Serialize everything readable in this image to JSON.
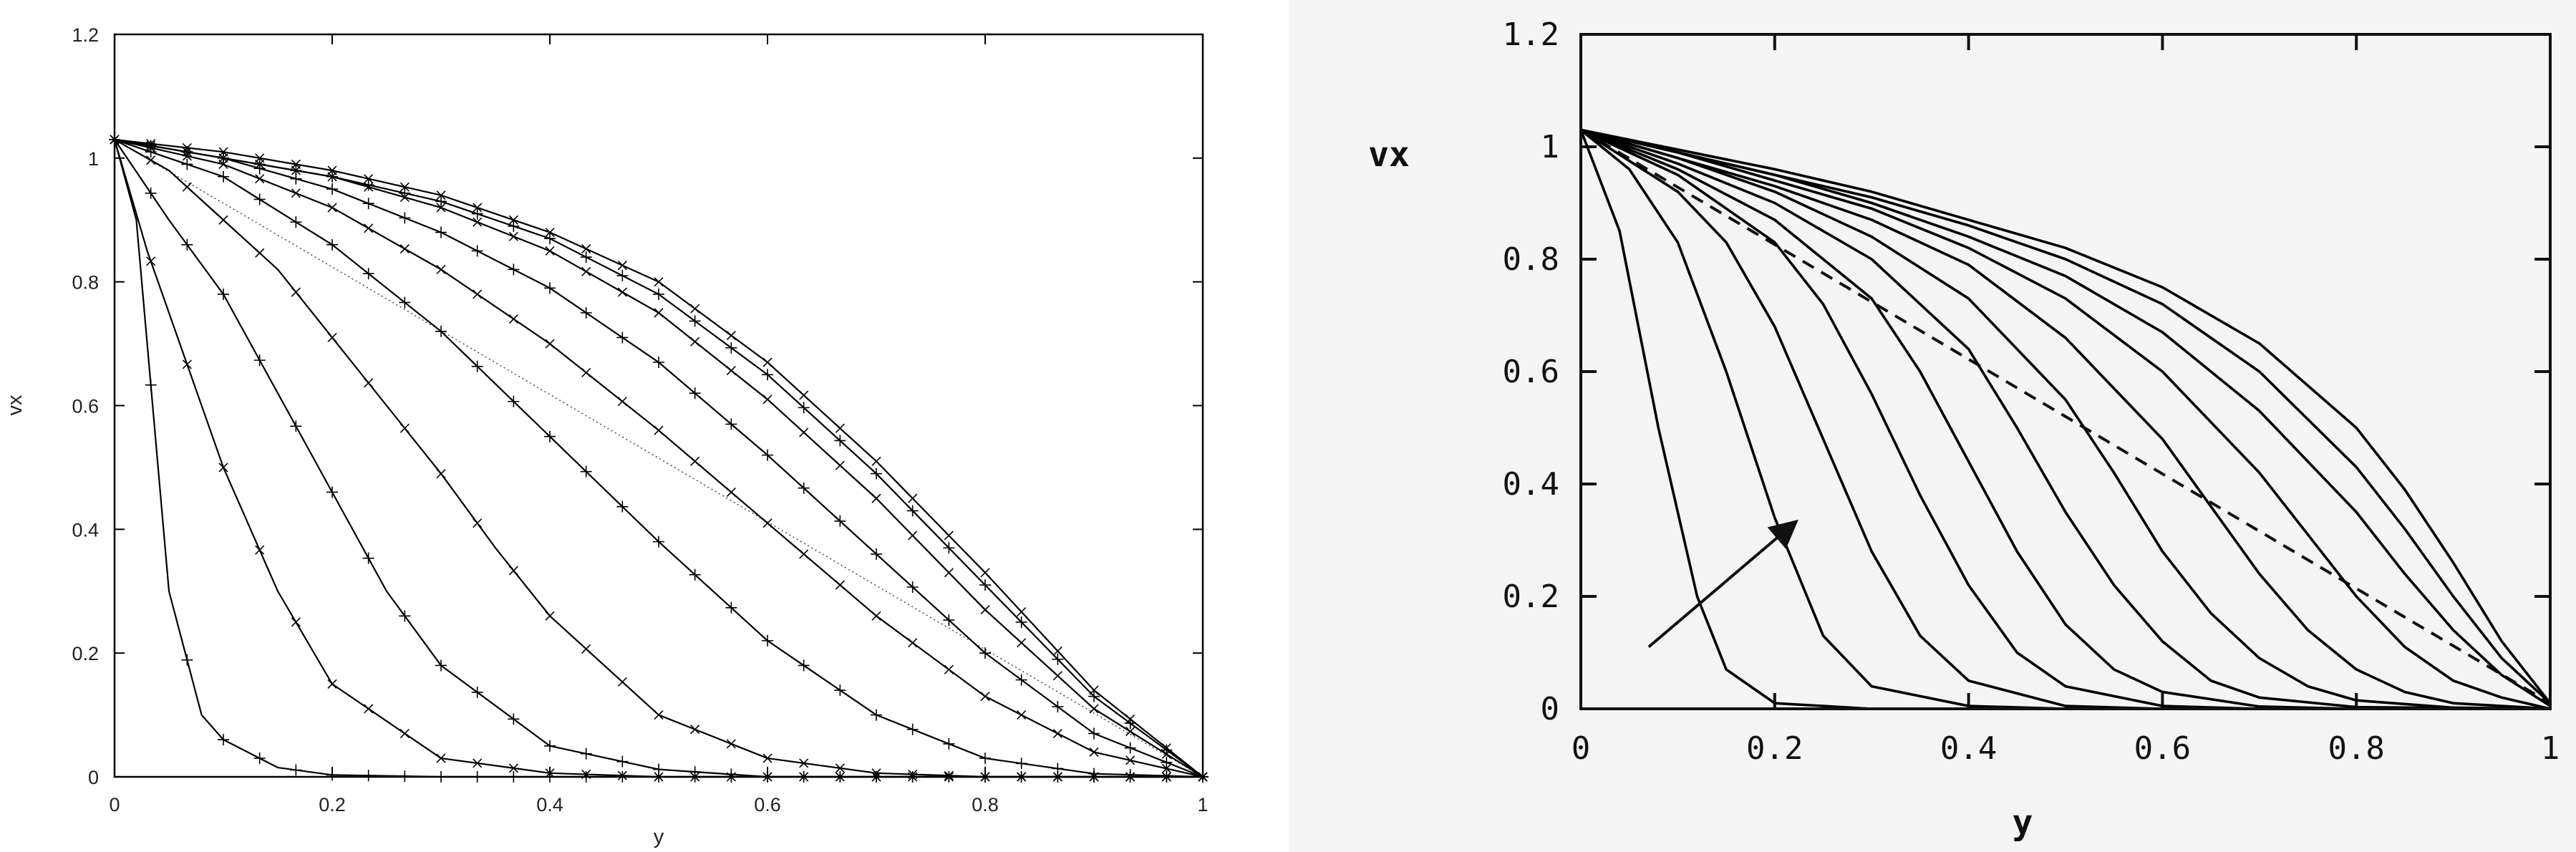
{
  "chart_data": [
    {
      "type": "line",
      "xlabel": "y",
      "ylabel": "vx",
      "xlim": [
        0,
        1
      ],
      "ylim": [
        0,
        1.2
      ],
      "xticks": [
        "0",
        "0.2",
        "0.4",
        "0.6",
        "0.8",
        "1"
      ],
      "yticks": [
        "0",
        "0.2",
        "0.4",
        "0.6",
        "0.8",
        "1",
        "1.2"
      ],
      "markers": [
        "+",
        "×",
        "+",
        "×",
        "+",
        "×",
        "+",
        "×",
        "+",
        "×"
      ],
      "series": [
        {
          "values": [
            [
              0,
              1.03
            ],
            [
              0.02,
              0.9
            ],
            [
              0.05,
              0.3
            ],
            [
              0.08,
              0.1
            ],
            [
              0.1,
              0.06
            ],
            [
              0.15,
              0.015
            ],
            [
              0.2,
              0.003
            ],
            [
              0.3,
              0
            ],
            [
              1,
              0
            ]
          ]
        },
        {
          "values": [
            [
              0,
              1.03
            ],
            [
              0.03,
              0.85
            ],
            [
              0.06,
              0.7
            ],
            [
              0.1,
              0.5
            ],
            [
              0.15,
              0.3
            ],
            [
              0.2,
              0.15
            ],
            [
              0.3,
              0.03
            ],
            [
              0.4,
              0.006
            ],
            [
              0.5,
              0
            ],
            [
              1,
              0
            ]
          ]
        },
        {
          "values": [
            [
              0,
              1.03
            ],
            [
              0.05,
              0.9
            ],
            [
              0.1,
              0.78
            ],
            [
              0.15,
              0.62
            ],
            [
              0.2,
              0.46
            ],
            [
              0.25,
              0.3
            ],
            [
              0.3,
              0.18
            ],
            [
              0.4,
              0.05
            ],
            [
              0.5,
              0.012
            ],
            [
              0.6,
              0
            ],
            [
              1,
              0
            ]
          ]
        },
        {
          "values": [
            [
              0,
              1.03
            ],
            [
              0.05,
              0.98
            ],
            [
              0.1,
              0.9
            ],
            [
              0.15,
              0.82
            ],
            [
              0.2,
              0.71
            ],
            [
              0.25,
              0.6
            ],
            [
              0.3,
              0.49
            ],
            [
              0.35,
              0.37
            ],
            [
              0.4,
              0.26
            ],
            [
              0.5,
              0.1
            ],
            [
              0.6,
              0.03
            ],
            [
              0.7,
              0.006
            ],
            [
              0.8,
              0
            ],
            [
              1,
              0
            ]
          ]
        },
        {
          "values": [
            [
              0,
              1.03
            ],
            [
              0.1,
              0.97
            ],
            [
              0.2,
              0.86
            ],
            [
              0.3,
              0.72
            ],
            [
              0.4,
              0.55
            ],
            [
              0.5,
              0.38
            ],
            [
              0.6,
              0.22
            ],
            [
              0.7,
              0.1
            ],
            [
              0.8,
              0.03
            ],
            [
              0.9,
              0.005
            ],
            [
              1,
              0
            ]
          ]
        },
        {
          "values": [
            [
              0,
              1.03
            ],
            [
              0.1,
              0.99
            ],
            [
              0.2,
              0.92
            ],
            [
              0.3,
              0.82
            ],
            [
              0.4,
              0.7
            ],
            [
              0.5,
              0.56
            ],
            [
              0.6,
              0.41
            ],
            [
              0.7,
              0.26
            ],
            [
              0.8,
              0.13
            ],
            [
              0.9,
              0.04
            ],
            [
              1,
              0
            ]
          ]
        },
        {
          "values": [
            [
              0,
              1.03
            ],
            [
              0.1,
              1.0
            ],
            [
              0.2,
              0.95
            ],
            [
              0.3,
              0.88
            ],
            [
              0.4,
              0.79
            ],
            [
              0.5,
              0.67
            ],
            [
              0.6,
              0.52
            ],
            [
              0.7,
              0.36
            ],
            [
              0.8,
              0.2
            ],
            [
              0.9,
              0.07
            ],
            [
              1,
              0
            ]
          ]
        },
        {
          "values": [
            [
              0,
              1.03
            ],
            [
              0.1,
              1.0
            ],
            [
              0.2,
              0.97
            ],
            [
              0.3,
              0.92
            ],
            [
              0.4,
              0.85
            ],
            [
              0.5,
              0.75
            ],
            [
              0.6,
              0.61
            ],
            [
              0.7,
              0.45
            ],
            [
              0.8,
              0.27
            ],
            [
              0.9,
              0.11
            ],
            [
              1,
              0
            ]
          ]
        },
        {
          "values": [
            [
              0,
              1.03
            ],
            [
              0.1,
              1.0
            ],
            [
              0.2,
              0.97
            ],
            [
              0.3,
              0.93
            ],
            [
              0.4,
              0.87
            ],
            [
              0.5,
              0.78
            ],
            [
              0.6,
              0.65
            ],
            [
              0.7,
              0.49
            ],
            [
              0.8,
              0.31
            ],
            [
              0.9,
              0.13
            ],
            [
              1,
              0
            ]
          ]
        },
        {
          "values": [
            [
              0,
              1.03
            ],
            [
              0.1,
              1.01
            ],
            [
              0.2,
              0.98
            ],
            [
              0.3,
              0.94
            ],
            [
              0.4,
              0.88
            ],
            [
              0.5,
              0.8
            ],
            [
              0.6,
              0.67
            ],
            [
              0.7,
              0.51
            ],
            [
              0.8,
              0.33
            ],
            [
              0.9,
              0.14
            ],
            [
              1,
              0
            ]
          ]
        }
      ],
      "reference": {
        "style": "dotted",
        "values": [
          [
            0,
            1.03
          ],
          [
            1,
            0
          ]
        ]
      }
    },
    {
      "type": "line",
      "xlabel": "y",
      "ylabel": "vx",
      "xlim": [
        0,
        1
      ],
      "ylim": [
        0,
        1.2
      ],
      "xticks": [
        "0",
        "0.2",
        "0.4",
        "0.6",
        "0.8",
        "1"
      ],
      "yticks": [
        "0",
        "0.2",
        "0.4",
        "0.6",
        "0.8",
        "1",
        "1.2"
      ],
      "series": [
        {
          "values": [
            [
              0,
              1.03
            ],
            [
              0.04,
              0.85
            ],
            [
              0.08,
              0.5
            ],
            [
              0.12,
              0.2
            ],
            [
              0.15,
              0.07
            ],
            [
              0.2,
              0.01
            ],
            [
              0.3,
              0
            ],
            [
              1,
              0
            ]
          ]
        },
        {
          "values": [
            [
              0,
              1.03
            ],
            [
              0.05,
              0.96
            ],
            [
              0.1,
              0.83
            ],
            [
              0.15,
              0.6
            ],
            [
              0.2,
              0.34
            ],
            [
              0.25,
              0.13
            ],
            [
              0.3,
              0.04
            ],
            [
              0.4,
              0.005
            ],
            [
              0.5,
              0
            ],
            [
              1,
              0
            ]
          ]
        },
        {
          "values": [
            [
              0,
              1.03
            ],
            [
              0.1,
              0.92
            ],
            [
              0.15,
              0.83
            ],
            [
              0.2,
              0.68
            ],
            [
              0.25,
              0.48
            ],
            [
              0.3,
              0.28
            ],
            [
              0.35,
              0.13
            ],
            [
              0.4,
              0.05
            ],
            [
              0.5,
              0.005
            ],
            [
              0.6,
              0
            ],
            [
              1,
              0
            ]
          ]
        },
        {
          "values": [
            [
              0,
              1.03
            ],
            [
              0.1,
              0.95
            ],
            [
              0.2,
              0.83
            ],
            [
              0.25,
              0.72
            ],
            [
              0.3,
              0.56
            ],
            [
              0.35,
              0.38
            ],
            [
              0.4,
              0.22
            ],
            [
              0.45,
              0.1
            ],
            [
              0.5,
              0.04
            ],
            [
              0.6,
              0.005
            ],
            [
              0.7,
              0
            ],
            [
              1,
              0
            ]
          ]
        },
        {
          "values": [
            [
              0,
              1.03
            ],
            [
              0.1,
              0.96
            ],
            [
              0.2,
              0.87
            ],
            [
              0.3,
              0.73
            ],
            [
              0.35,
              0.6
            ],
            [
              0.4,
              0.44
            ],
            [
              0.45,
              0.28
            ],
            [
              0.5,
              0.15
            ],
            [
              0.55,
              0.07
            ],
            [
              0.6,
              0.03
            ],
            [
              0.7,
              0.004
            ],
            [
              0.8,
              0
            ],
            [
              1,
              0
            ]
          ]
        },
        {
          "values": [
            [
              0,
              1.03
            ],
            [
              0.1,
              0.97
            ],
            [
              0.2,
              0.9
            ],
            [
              0.3,
              0.8
            ],
            [
              0.4,
              0.64
            ],
            [
              0.45,
              0.5
            ],
            [
              0.5,
              0.35
            ],
            [
              0.55,
              0.22
            ],
            [
              0.6,
              0.12
            ],
            [
              0.65,
              0.05
            ],
            [
              0.7,
              0.02
            ],
            [
              0.8,
              0.003
            ],
            [
              1,
              0
            ]
          ]
        },
        {
          "values": [
            [
              0,
              1.03
            ],
            [
              0.1,
              0.98
            ],
            [
              0.2,
              0.92
            ],
            [
              0.3,
              0.84
            ],
            [
              0.4,
              0.73
            ],
            [
              0.5,
              0.55
            ],
            [
              0.55,
              0.42
            ],
            [
              0.6,
              0.28
            ],
            [
              0.65,
              0.17
            ],
            [
              0.7,
              0.09
            ],
            [
              0.75,
              0.04
            ],
            [
              0.8,
              0.015
            ],
            [
              0.9,
              0.002
            ],
            [
              1,
              0
            ]
          ]
        },
        {
          "values": [
            [
              0,
              1.03
            ],
            [
              0.1,
              0.98
            ],
            [
              0.2,
              0.93
            ],
            [
              0.3,
              0.87
            ],
            [
              0.4,
              0.79
            ],
            [
              0.5,
              0.66
            ],
            [
              0.6,
              0.48
            ],
            [
              0.65,
              0.36
            ],
            [
              0.7,
              0.24
            ],
            [
              0.75,
              0.14
            ],
            [
              0.8,
              0.07
            ],
            [
              0.85,
              0.03
            ],
            [
              0.9,
              0.01
            ],
            [
              1,
              0
            ]
          ]
        },
        {
          "values": [
            [
              0,
              1.03
            ],
            [
              0.1,
              0.99
            ],
            [
              0.2,
              0.94
            ],
            [
              0.3,
              0.89
            ],
            [
              0.4,
              0.82
            ],
            [
              0.5,
              0.73
            ],
            [
              0.6,
              0.6
            ],
            [
              0.7,
              0.42
            ],
            [
              0.75,
              0.31
            ],
            [
              0.8,
              0.2
            ],
            [
              0.85,
              0.11
            ],
            [
              0.9,
              0.05
            ],
            [
              0.95,
              0.02
            ],
            [
              1,
              0
            ]
          ]
        },
        {
          "values": [
            [
              0,
              1.03
            ],
            [
              0.1,
              0.99
            ],
            [
              0.2,
              0.95
            ],
            [
              0.3,
              0.9
            ],
            [
              0.4,
              0.84
            ],
            [
              0.5,
              0.77
            ],
            [
              0.6,
              0.67
            ],
            [
              0.7,
              0.53
            ],
            [
              0.8,
              0.35
            ],
            [
              0.85,
              0.24
            ],
            [
              0.9,
              0.14
            ],
            [
              0.95,
              0.06
            ],
            [
              1,
              0.005
            ]
          ]
        },
        {
          "values": [
            [
              0,
              1.03
            ],
            [
              0.1,
              0.99
            ],
            [
              0.2,
              0.95
            ],
            [
              0.3,
              0.91
            ],
            [
              0.4,
              0.86
            ],
            [
              0.5,
              0.8
            ],
            [
              0.6,
              0.72
            ],
            [
              0.7,
              0.6
            ],
            [
              0.8,
              0.43
            ],
            [
              0.85,
              0.32
            ],
            [
              0.9,
              0.2
            ],
            [
              0.95,
              0.09
            ],
            [
              1,
              0.01
            ]
          ]
        },
        {
          "values": [
            [
              0,
              1.03
            ],
            [
              0.1,
              0.995
            ],
            [
              0.2,
              0.96
            ],
            [
              0.3,
              0.92
            ],
            [
              0.4,
              0.87
            ],
            [
              0.5,
              0.82
            ],
            [
              0.6,
              0.75
            ],
            [
              0.7,
              0.65
            ],
            [
              0.8,
              0.5
            ],
            [
              0.85,
              0.39
            ],
            [
              0.9,
              0.26
            ],
            [
              0.95,
              0.12
            ],
            [
              1,
              0.01
            ]
          ]
        }
      ],
      "reference": {
        "style": "dashed",
        "values": [
          [
            0,
            1.03
          ],
          [
            1,
            0.01
          ]
        ]
      },
      "annotation": {
        "type": "arrow",
        "from": [
          0.07,
          0.11
        ],
        "to": [
          0.22,
          0.33
        ]
      }
    }
  ]
}
